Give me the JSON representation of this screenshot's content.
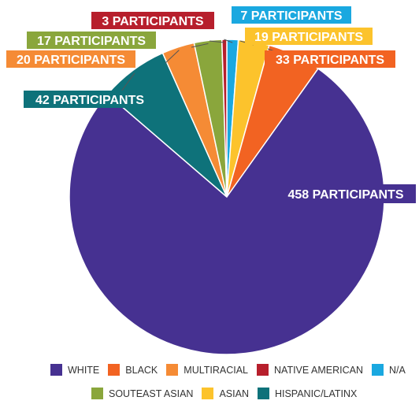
{
  "chart_data": {
    "type": "pie",
    "title": "",
    "start_angle_deg": 0,
    "direction": "clockwise",
    "slices": [
      {
        "name": "N/A",
        "value": 7,
        "label": "7 PARTICIPANTS",
        "color": "#1aa8e0"
      },
      {
        "name": "ASIAN",
        "value": 19,
        "label": "19 PARTICIPANTS",
        "color": "#fcc32c"
      },
      {
        "name": "BLACK",
        "value": 33,
        "label": "33 PARTICIPANTS",
        "color": "#f26322"
      },
      {
        "name": "WHITE",
        "value": 458,
        "label": "458 PARTICIPANTS",
        "color": "#463191"
      },
      {
        "name": "HISPANIC/LATINX",
        "value": 42,
        "label": "42 PARTICIPANTS",
        "color": "#0e727a"
      },
      {
        "name": "MULTIRACIAL",
        "value": 20,
        "label": "20 PARTICIPANTS",
        "color": "#f58b35"
      },
      {
        "name": "SOUTEAST ASIAN",
        "value": 17,
        "label": "17 PARTICIPANTS",
        "color": "#8aa63c"
      },
      {
        "name": "NATIVE AMERICAN",
        "value": 3,
        "label": "3 PARTICIPANTS",
        "color": "#b71f2c"
      }
    ],
    "legend": {
      "placement": "bottom",
      "rows": [
        [
          "WHITE",
          "BLACK",
          "MULTIRACIAL",
          "NATIVE AMERICAN",
          "N/A"
        ],
        [
          "SOUTEAST ASIAN",
          "ASIAN",
          "HISPANIC/LATINX"
        ]
      ]
    }
  }
}
